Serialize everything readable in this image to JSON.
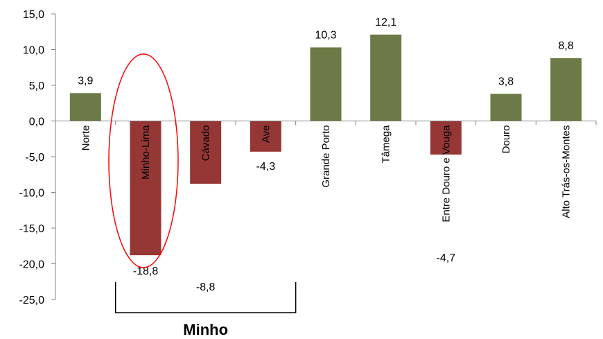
{
  "chart_data": {
    "type": "bar",
    "categories": [
      "Norte",
      "Minho-Lima",
      "Cávado",
      "Ave",
      "Grande Porto",
      "Tâmega",
      "Entre Douro e Vouga",
      "Douro",
      "Alto Trás-os-Montes"
    ],
    "values": [
      3.9,
      -18.8,
      -8.8,
      -4.3,
      10.3,
      12.1,
      -4.7,
      3.8,
      8.8
    ],
    "value_labels": [
      "3,9",
      "-18,8",
      "-8,8",
      "-4,3",
      "10,3",
      "12,1",
      "-4,7",
      "3,8",
      "8,8"
    ],
    "ylim": [
      -25,
      15
    ],
    "yticks": [
      15,
      10,
      5,
      0,
      -5,
      -10,
      -15,
      -20,
      -25
    ],
    "ytick_labels": [
      "15,0",
      "10,0",
      "5,0",
      "0,0",
      "-5,0",
      "-10,0",
      "-15,0",
      "-20,0",
      "-25,0"
    ],
    "grid": false,
    "colors": {
      "positive": "#6b7a46",
      "negative": "#953735",
      "highlight": "#ff0000",
      "axis": "#808080"
    },
    "highlight_category": "Minho-Lima",
    "group": {
      "label": "Minho",
      "categories": [
        "Minho-Lima",
        "Cávado",
        "Ave"
      ]
    }
  }
}
